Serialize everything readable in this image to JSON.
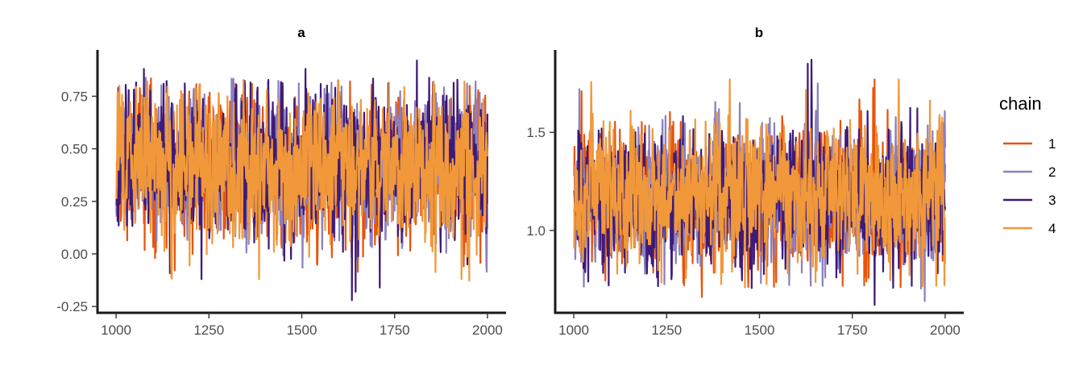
{
  "chart_data": {
    "type": "line",
    "chart_kind": "MCMC trace plot",
    "legend": {
      "title": "chain",
      "placement": "right",
      "entries": [
        {
          "label": "1",
          "color": "#e6550d"
        },
        {
          "label": "2",
          "color": "#8c80bf"
        },
        {
          "label": "3",
          "color": "#3f1a78"
        },
        {
          "label": "4",
          "color": "#f0983a"
        }
      ]
    },
    "draw_order": [
      "1",
      "2",
      "3",
      "4"
    ],
    "iterations": {
      "start": 1001,
      "end": 2000
    },
    "panels": [
      {
        "name": "a",
        "title": "a",
        "xlim": [
          950,
          2050
        ],
        "ylim": [
          -0.28,
          0.97
        ],
        "xticks": [
          1000,
          1250,
          1500,
          1750,
          2000
        ],
        "xtick_labels": [
          "1000",
          "1250",
          "1500",
          "1750",
          "2000"
        ],
        "yticks": [
          -0.25,
          0.0,
          0.25,
          0.5,
          0.75
        ],
        "ytick_labels": [
          "-0.25",
          "0.00",
          "0.25",
          "0.50",
          "0.75"
        ],
        "grid": false,
        "chain_summary": {
          "center": 0.42,
          "spread": 0.17,
          "approx_min": -0.23,
          "approx_max": 0.92
        },
        "extremes": [
          {
            "chain": "3",
            "x": 1075,
            "y": 0.88
          },
          {
            "chain": "3",
            "x": 1230,
            "y": -0.12
          },
          {
            "chain": "4",
            "x": 1385,
            "y": -0.12
          },
          {
            "chain": "3",
            "x": 1510,
            "y": 0.88
          },
          {
            "chain": "3",
            "x": 1635,
            "y": -0.22
          },
          {
            "chain": "3",
            "x": 1645,
            "y": -0.18
          },
          {
            "chain": "3",
            "x": 1710,
            "y": -0.16
          },
          {
            "chain": "3",
            "x": 1810,
            "y": 0.92
          },
          {
            "chain": "2",
            "x": 1945,
            "y": 0.81
          },
          {
            "chain": "4",
            "x": 1930,
            "y": -0.12
          },
          {
            "chain": "1",
            "x": 1630,
            "y": 0.82
          }
        ]
      },
      {
        "name": "b",
        "title": "b",
        "xlim": [
          950,
          2050
        ],
        "ylim": [
          0.58,
          1.92
        ],
        "xticks": [
          1000,
          1250,
          1500,
          1750,
          2000
        ],
        "xtick_labels": [
          "1000",
          "1250",
          "1500",
          "1750",
          "2000"
        ],
        "yticks": [
          1.0,
          1.5
        ],
        "ytick_labels": [
          "1.0",
          "1.5"
        ],
        "grid": false,
        "chain_summary": {
          "center": 1.17,
          "spread": 0.17,
          "approx_min": 0.62,
          "approx_max": 1.87
        },
        "extremes": [
          {
            "chain": "2",
            "x": 1015,
            "y": 1.72
          },
          {
            "chain": "4",
            "x": 1420,
            "y": 1.77
          },
          {
            "chain": "3",
            "x": 1630,
            "y": 1.85
          },
          {
            "chain": "3",
            "x": 1640,
            "y": 1.87
          },
          {
            "chain": "1",
            "x": 1810,
            "y": 1.77
          },
          {
            "chain": "4",
            "x": 1875,
            "y": 1.77
          },
          {
            "chain": "3",
            "x": 1810,
            "y": 0.62
          },
          {
            "chain": "2",
            "x": 1945,
            "y": 0.64
          },
          {
            "chain": "1",
            "x": 1345,
            "y": 0.66
          }
        ]
      }
    ]
  }
}
